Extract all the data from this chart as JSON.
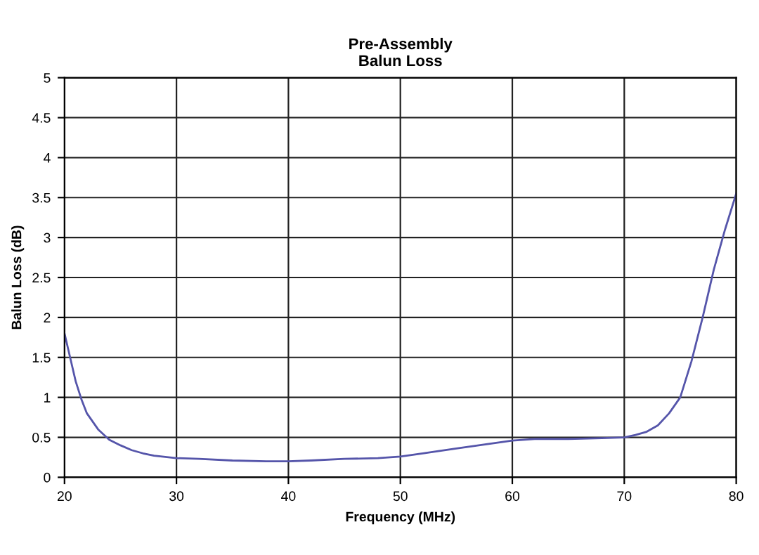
{
  "chart_data": {
    "type": "line",
    "title": "Pre-Assembly\nBalun Loss",
    "xlabel": "Frequency (MHz)",
    "ylabel": "Balun Loss (dB)",
    "x": [
      20,
      20.5,
      21,
      21.5,
      22,
      23,
      24,
      25,
      26,
      27,
      28,
      30,
      32,
      35,
      38,
      40,
      42,
      45,
      48,
      50,
      52,
      55,
      58,
      60,
      62,
      65,
      68,
      70,
      71,
      72,
      73,
      74,
      75,
      76,
      77,
      78,
      79,
      80
    ],
    "series": [
      {
        "color": "#5555aa",
        "values": [
          1.8,
          1.5,
          1.2,
          0.98,
          0.8,
          0.6,
          0.47,
          0.4,
          0.34,
          0.3,
          0.27,
          0.24,
          0.23,
          0.21,
          0.2,
          0.2,
          0.21,
          0.23,
          0.24,
          0.26,
          0.3,
          0.36,
          0.42,
          0.46,
          0.48,
          0.48,
          0.49,
          0.5,
          0.53,
          0.57,
          0.65,
          0.8,
          1.0,
          1.45,
          2.0,
          2.6,
          3.1,
          3.55
        ]
      }
    ],
    "xlim": [
      20,
      80
    ],
    "xticks": [
      20,
      30,
      40,
      50,
      60,
      70,
      80
    ],
    "ylim": [
      0,
      5
    ],
    "yticks": [
      0,
      0.5,
      1,
      1.5,
      2,
      2.5,
      3,
      3.5,
      4,
      4.5,
      5
    ],
    "grid": true
  }
}
